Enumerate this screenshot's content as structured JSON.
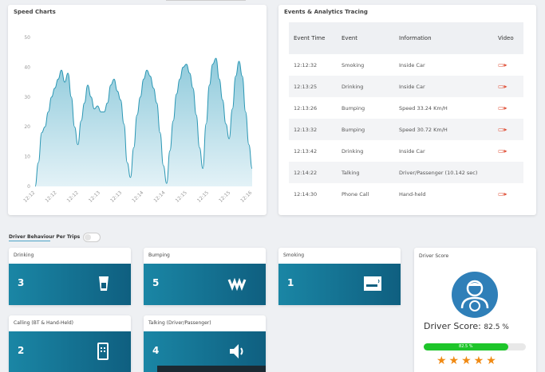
{
  "speed_chart": {
    "title": "Speed Charts",
    "y_ticks": [
      "50",
      "40",
      "30",
      "20",
      "10",
      "0"
    ],
    "x_ticks": [
      "12:12",
      "12:12",
      "12:12",
      "12:13",
      "12:13",
      "12:14",
      "12:14",
      "12:15",
      "12:15",
      "12:15",
      "12:16"
    ],
    "chart_data": {
      "type": "area",
      "title": "Speed Charts",
      "xlabel": "",
      "ylabel": "",
      "ylim": [
        0,
        50
      ],
      "grid": false,
      "values": [
        0,
        8,
        18,
        20,
        25,
        30,
        33,
        36,
        39,
        35,
        38,
        30,
        20,
        14,
        22,
        28,
        34,
        30,
        26,
        27,
        25,
        25,
        28,
        34,
        36,
        32,
        29,
        21,
        8,
        3,
        13,
        24,
        30,
        36,
        39,
        37,
        33,
        28,
        18,
        7,
        1,
        12,
        22,
        31,
        36,
        40,
        41,
        38,
        33,
        24,
        13,
        6,
        21,
        34,
        41,
        43,
        36,
        29,
        21,
        16,
        26,
        37,
        42,
        37,
        25,
        14,
        6
      ]
    }
  },
  "events": {
    "title": "Events & Analytics Tracing",
    "columns": [
      "Event Time",
      "Event",
      "Information",
      "Video"
    ],
    "rows": [
      {
        "time": "12:12:32",
        "event": "Smoking",
        "info": "Inside Car",
        "video": "▭▸"
      },
      {
        "time": "12:13:25",
        "event": "Drinking",
        "info": "Inside Car",
        "video": "▭▸"
      },
      {
        "time": "12:13:26",
        "event": "Bumping",
        "info": "Speed 33.24 Km/H",
        "video": "▭▸"
      },
      {
        "time": "12:13:32",
        "event": "Bumping",
        "info": "Speed 30.72 Km/H",
        "video": "▭▸"
      },
      {
        "time": "12:13:42",
        "event": "Drinking",
        "info": "Inside Car",
        "video": "▭▸"
      },
      {
        "time": "12:14:22",
        "event": "Talking",
        "info": "Driver/Passenger (10.142 sec)",
        "video": ""
      },
      {
        "time": "12:14:30",
        "event": "Phone Call",
        "info": "Hand-held",
        "video": "▭▸"
      }
    ]
  },
  "behaviour": {
    "label": "Driver Behaviour Per Trips",
    "stats": [
      {
        "label": "Drinking",
        "value": "3",
        "icon": "cup-icon"
      },
      {
        "label": "Bumping",
        "value": "5",
        "icon": "bumping-icon"
      },
      {
        "label": "Smoking",
        "value": "1",
        "icon": "cigarette-icon"
      },
      {
        "label": "Calling (BT & Hand-Held)",
        "value": "2",
        "icon": "phone-icon"
      },
      {
        "label": "Talking (Driver/Passenger)",
        "value": "4",
        "icon": "speaker-icon"
      }
    ]
  },
  "driver_score": {
    "label": "Driver Score",
    "score_label": "Driver Score:",
    "score_value": "82.5 %",
    "progress_label": "82.5 %",
    "progress": 0.825,
    "stars": "★★★★★",
    "colors": {
      "accent": "#1a86a5",
      "progress": "#1ec52a",
      "star": "#f08a14"
    }
  }
}
